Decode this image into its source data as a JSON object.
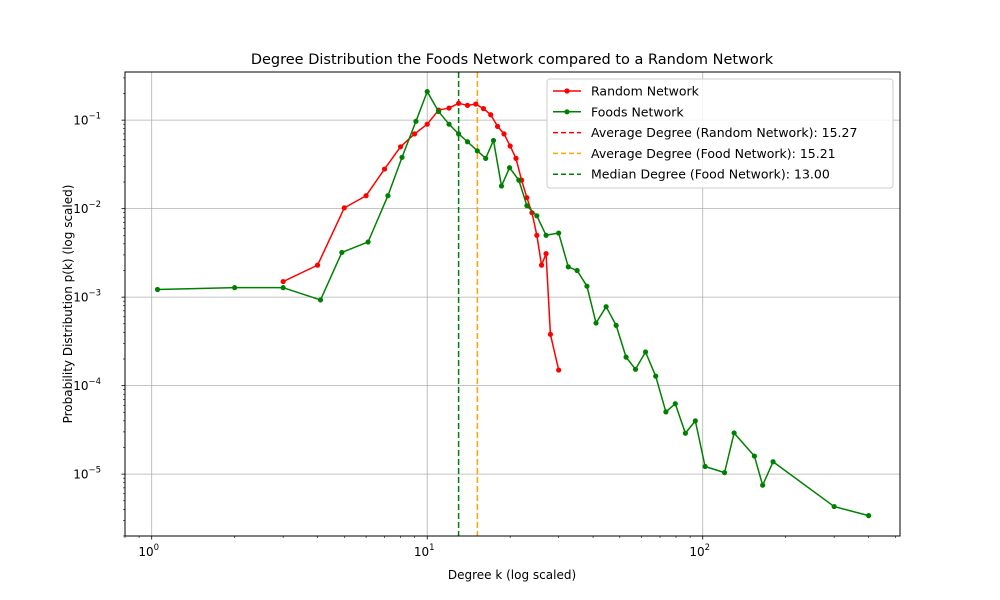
{
  "chart_data": {
    "type": "line",
    "title": "Degree Distribution the Foods Network compared to a Random Network",
    "xlabel": "Degree k (log scaled)",
    "ylabel": "Probability Distribution p(k) (log scaled)",
    "xscale": "log",
    "yscale": "log",
    "xlim": [
      0.8,
      520
    ],
    "ylim": [
      2e-06,
      0.35
    ],
    "grid": true,
    "legend_position": "top-right",
    "x_ticks": [
      {
        "value": 1,
        "base": "10",
        "exp": "0"
      },
      {
        "value": 10,
        "base": "10",
        "exp": "1"
      },
      {
        "value": 100,
        "base": "10",
        "exp": "2"
      }
    ],
    "y_ticks": [
      {
        "value": 1e-05,
        "base": "10",
        "exp": "−5"
      },
      {
        "value": 0.0001,
        "base": "10",
        "exp": "−4"
      },
      {
        "value": 0.001,
        "base": "10",
        "exp": "−3"
      },
      {
        "value": 0.01,
        "base": "10",
        "exp": "−2"
      },
      {
        "value": 0.1,
        "base": "10",
        "exp": "−1"
      }
    ],
    "series": [
      {
        "name": "Random Network",
        "color": "#ff0000",
        "style": "line-marker",
        "points": [
          [
            3,
            0.0015
          ],
          [
            4,
            0.0023
          ],
          [
            5,
            0.0102
          ],
          [
            6,
            0.014
          ],
          [
            7,
            0.028
          ],
          [
            8,
            0.05
          ],
          [
            9,
            0.07
          ],
          [
            10,
            0.09
          ],
          [
            11,
            0.13
          ],
          [
            12,
            0.137
          ],
          [
            13,
            0.155
          ],
          [
            14,
            0.147
          ],
          [
            15,
            0.152
          ],
          [
            16,
            0.135
          ],
          [
            17,
            0.115
          ],
          [
            18,
            0.085
          ],
          [
            19,
            0.07
          ],
          [
            20,
            0.051
          ],
          [
            21,
            0.037
          ],
          [
            22,
            0.021
          ],
          [
            23,
            0.0133
          ],
          [
            24,
            0.009
          ],
          [
            25,
            0.005
          ],
          [
            26,
            0.0023
          ],
          [
            27,
            0.0031
          ],
          [
            28,
            0.00038
          ],
          [
            30,
            0.00015
          ]
        ]
      },
      {
        "name": "Foods Network",
        "color": "#008000",
        "style": "line-marker",
        "points": [
          [
            1.05,
            0.00122
          ],
          [
            2,
            0.00128
          ],
          [
            3,
            0.00128
          ],
          [
            4.1,
            0.00093
          ],
          [
            4.9,
            0.0032
          ],
          [
            6.1,
            0.0042
          ],
          [
            7.2,
            0.014
          ],
          [
            8.1,
            0.038
          ],
          [
            9.1,
            0.097
          ],
          [
            10,
            0.21
          ],
          [
            11,
            0.125
          ],
          [
            12,
            0.09
          ],
          [
            13,
            0.07
          ],
          [
            14,
            0.057
          ],
          [
            15.2,
            0.045
          ],
          [
            16.3,
            0.037
          ],
          [
            17.4,
            0.059
          ],
          [
            18.6,
            0.018
          ],
          [
            19.9,
            0.029
          ],
          [
            21.5,
            0.021
          ],
          [
            23,
            0.0108
          ],
          [
            25,
            0.0083
          ],
          [
            27,
            0.005
          ],
          [
            30,
            0.0053
          ],
          [
            32.5,
            0.0022
          ],
          [
            35,
            0.002
          ],
          [
            38,
            0.00133
          ],
          [
            41,
            0.00051
          ],
          [
            44.6,
            0.00078
          ],
          [
            48.5,
            0.00048
          ],
          [
            52.7,
            0.00021
          ],
          [
            57,
            0.000153
          ],
          [
            62,
            0.00024
          ],
          [
            67.5,
            0.000128
          ],
          [
            73.5,
            5.05e-05
          ],
          [
            79.5,
            6.25e-05
          ],
          [
            86.5,
            2.9e-05
          ],
          [
            94,
            4e-05
          ],
          [
            102,
            1.22e-05
          ],
          [
            120,
            1.04e-05
          ],
          [
            130,
            2.92e-05
          ],
          [
            154,
            1.6e-05
          ],
          [
            165,
            7.5e-06
          ],
          [
            180,
            1.38e-05
          ],
          [
            300,
            4.3e-06
          ],
          [
            400,
            3.4e-06
          ]
        ]
      }
    ],
    "vlines": [
      {
        "name": "Average Degree (Random Network): 15.27",
        "x": 15.27,
        "color": "#ff0000",
        "style": "dashed",
        "drawn": false
      },
      {
        "name": "Average Degree (Food Network): 15.21",
        "x": 15.21,
        "color": "#ffa500",
        "style": "dashed",
        "drawn": true
      },
      {
        "name": "Median Degree (Food Network): 13.00",
        "x": 13.0,
        "color": "#008000",
        "style": "dashed",
        "drawn": true
      }
    ],
    "legend": [
      {
        "label": "Random Network",
        "color": "#ff0000",
        "kind": "line-marker"
      },
      {
        "label": "Foods Network",
        "color": "#008000",
        "kind": "line-marker"
      },
      {
        "label": "Average Degree (Random Network): 15.27",
        "color": "#ff0000",
        "kind": "dashed"
      },
      {
        "label": "Average Degree (Food Network): 15.21",
        "color": "#ffa500",
        "kind": "dashed"
      },
      {
        "label": "Median Degree (Food Network): 13.00",
        "color": "#008000",
        "kind": "dashed"
      }
    ]
  }
}
